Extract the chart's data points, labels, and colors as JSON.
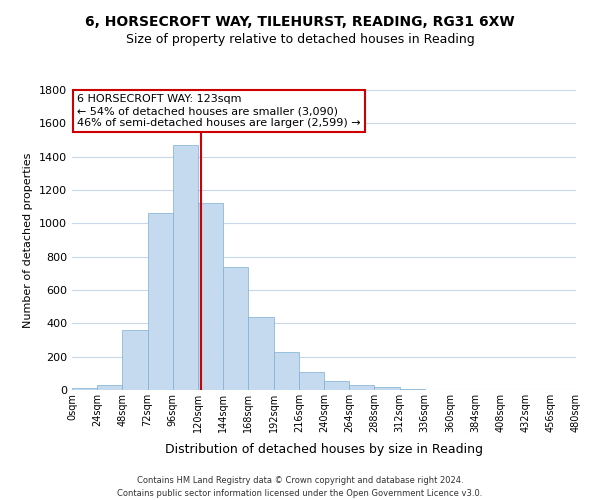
{
  "title_line1": "6, HORSECROFT WAY, TILEHURST, READING, RG31 6XW",
  "title_line2": "Size of property relative to detached houses in Reading",
  "xlabel": "Distribution of detached houses by size in Reading",
  "ylabel": "Number of detached properties",
  "bin_edges": [
    0,
    24,
    48,
    72,
    96,
    120,
    144,
    168,
    192,
    216,
    240,
    264,
    288,
    312,
    336,
    360,
    384,
    408,
    432,
    456,
    480
  ],
  "bar_heights": [
    15,
    30,
    360,
    1060,
    1470,
    1120,
    740,
    440,
    230,
    110,
    55,
    30,
    18,
    8,
    3,
    2,
    1,
    0,
    0,
    0
  ],
  "bar_color": "#c6daef",
  "bar_edgecolor": "#7bafd4",
  "property_size": 123,
  "vline_color": "#cc0000",
  "annotation_title": "6 HORSECROFT WAY: 123sqm",
  "annotation_line1": "← 54% of detached houses are smaller (3,090)",
  "annotation_line2": "46% of semi-detached houses are larger (2,599) →",
  "annotation_box_edgecolor": "#cc0000",
  "annotation_box_facecolor": "#ffffff",
  "ylim": [
    0,
    1800
  ],
  "yticks": [
    0,
    200,
    400,
    600,
    800,
    1000,
    1200,
    1400,
    1600,
    1800
  ],
  "xtick_labels": [
    "0sqm",
    "24sqm",
    "48sqm",
    "72sqm",
    "96sqm",
    "120sqm",
    "144sqm",
    "168sqm",
    "192sqm",
    "216sqm",
    "240sqm",
    "264sqm",
    "288sqm",
    "312sqm",
    "336sqm",
    "360sqm",
    "384sqm",
    "408sqm",
    "432sqm",
    "456sqm",
    "480sqm"
  ],
  "footer_line1": "Contains HM Land Registry data © Crown copyright and database right 2024.",
  "footer_line2": "Contains public sector information licensed under the Open Government Licence v3.0.",
  "background_color": "#ffffff",
  "grid_color": "#c8d8e8",
  "title_fontsize": 10,
  "subtitle_fontsize": 9,
  "ylabel_fontsize": 8,
  "xlabel_fontsize": 9,
  "annotation_fontsize": 8,
  "ytick_fontsize": 8,
  "xtick_fontsize": 7,
  "footer_fontsize": 6
}
